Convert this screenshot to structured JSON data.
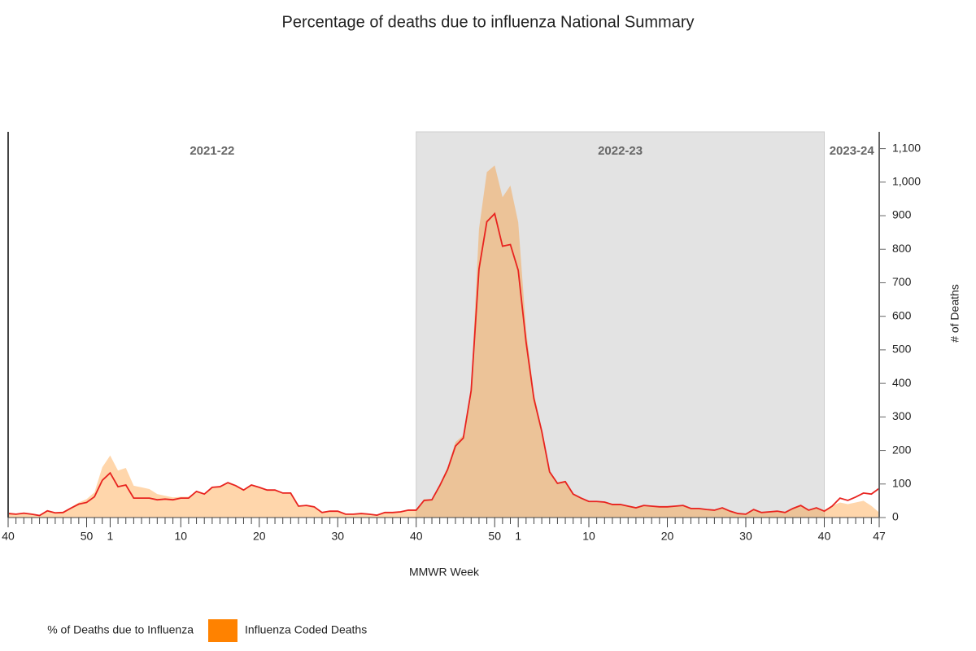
{
  "chart_data": {
    "type": "area-line",
    "title": "Percentage of deaths due to influenza National Summary",
    "x_label": "MMWR Week",
    "y2_label": "# of Deaths",
    "categories": [
      40,
      null,
      null,
      null,
      null,
      null,
      null,
      null,
      null,
      null,
      50,
      null,
      null,
      1,
      null,
      null,
      null,
      null,
      null,
      null,
      null,
      null,
      10,
      null,
      null,
      null,
      null,
      null,
      null,
      null,
      null,
      null,
      20,
      null,
      null,
      null,
      null,
      null,
      null,
      null,
      null,
      null,
      30,
      null,
      null,
      null,
      null,
      null,
      null,
      null,
      null,
      null,
      40,
      null,
      null,
      null,
      null,
      null,
      null,
      null,
      null,
      null,
      50,
      null,
      null,
      1,
      null,
      null,
      null,
      null,
      null,
      null,
      null,
      null,
      10,
      null,
      null,
      null,
      null,
      null,
      null,
      null,
      null,
      null,
      20,
      null,
      null,
      null,
      null,
      null,
      null,
      null,
      null,
      null,
      30,
      null,
      null,
      null,
      null,
      null,
      null,
      null,
      null,
      null,
      40,
      null,
      null,
      null,
      null,
      null,
      null,
      47
    ],
    "seasons": [
      {
        "label": "2021-22"
      },
      {
        "label": "2022-23",
        "shaded": true
      },
      {
        "label": "2023-24"
      }
    ],
    "series": [
      {
        "name": "Influenza Coded Deaths",
        "kind": "area",
        "color": "#ff8200",
        "axis": "y2",
        "values": [
          15,
          12,
          14,
          12,
          8,
          18,
          16,
          18,
          30,
          45,
          55,
          75,
          150,
          185,
          140,
          148,
          95,
          90,
          85,
          70,
          65,
          60,
          62,
          62,
          80,
          72,
          90,
          92,
          104,
          95,
          82,
          97,
          90,
          82,
          82,
          73,
          73,
          34,
          36,
          32,
          15,
          19,
          19,
          10,
          10,
          12,
          10,
          7,
          15,
          15,
          17,
          22,
          25,
          55,
          55,
          100,
          150,
          225,
          245,
          390,
          860,
          1030,
          1050,
          955,
          990,
          880,
          560,
          370,
          265,
          140,
          105,
          110,
          70,
          58,
          48,
          48,
          46,
          39,
          39,
          34,
          29,
          36,
          34,
          32,
          32,
          34,
          36,
          27,
          27,
          24,
          22,
          29,
          19,
          12,
          10,
          24,
          15,
          17,
          19,
          15,
          27,
          36,
          22,
          29,
          22,
          35,
          45,
          40,
          45,
          50,
          35,
          15
        ]
      },
      {
        "name": "% of Deaths due to Influenza",
        "kind": "line",
        "color": "#e8231f",
        "axis": "y2",
        "values": [
          12,
          10,
          13,
          10,
          6,
          20,
          14,
          15,
          28,
          40,
          45,
          62,
          111,
          133,
          92,
          97,
          58,
          58,
          58,
          53,
          55,
          53,
          58,
          58,
          78,
          70,
          90,
          92,
          104,
          95,
          82,
          97,
          90,
          82,
          82,
          73,
          73,
          34,
          36,
          32,
          15,
          19,
          19,
          10,
          10,
          12,
          10,
          7,
          15,
          15,
          17,
          22,
          22,
          51,
          53,
          95,
          143,
          213,
          237,
          378,
          741,
          882,
          906,
          809,
          814,
          737,
          523,
          354,
          257,
          136,
          102,
          107,
          70,
          58,
          48,
          48,
          46,
          39,
          39,
          34,
          29,
          36,
          34,
          32,
          32,
          34,
          36,
          27,
          27,
          24,
          22,
          29,
          19,
          12,
          10,
          24,
          15,
          17,
          19,
          15,
          27,
          36,
          22,
          29,
          19,
          34,
          58,
          51,
          61,
          73,
          70,
          87
        ]
      }
    ],
    "y2lim": [
      0,
      1150
    ],
    "y2ticks": [
      0,
      100,
      200,
      300,
      400,
      500,
      600,
      700,
      800,
      900,
      {
        "value": 1000,
        "label": "1,000"
      },
      {
        "value": 1100,
        "label": "1,100"
      }
    ]
  }
}
